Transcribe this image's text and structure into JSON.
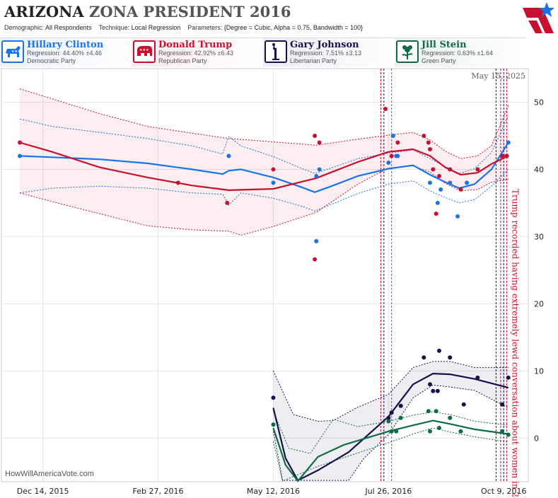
{
  "header": {
    "title_main": "ARIZONA",
    "title_sub": "ZONA PRESIDENT 2016",
    "demographic_label": "Demographic:",
    "demographic": "All Respondents",
    "technique_label": "Technique:",
    "technique": "Local Regression",
    "parameters_label": "Parameters:",
    "parameters": "{Degree = Cubic, Alpha = 0.75, Bandwidth = 100}"
  },
  "candidates": [
    {
      "name": "Hillary Clinton",
      "regression": "Regression: 44.40% ±4.46",
      "party": "Democratic Party",
      "color": "#1a73e8",
      "icon": "donkey-icon"
    },
    {
      "name": "Donald Trump",
      "regression": "Regression: 42.92% ±6.43",
      "party": "Republican Party",
      "color": "#c8102e",
      "icon": "elephant-icon"
    },
    {
      "name": "Gary Johnson",
      "regression": "Regression: 7.51% ±3.13",
      "party": "Libertarian Party",
      "color": "#14124a",
      "icon": "liberty-statue-icon"
    },
    {
      "name": "Jill Stein",
      "regression": "Regression: 0.63% ±1.64",
      "party": "Green Party",
      "color": "#0f6b43",
      "icon": "flower-icon"
    }
  ],
  "chart_data": {
    "type": "scatter",
    "date_label": "May 15, 2025",
    "watermark": "HowWillAmericaVote.com",
    "annotation": "Trump recorded having extremely lewd conversation about women in 2005",
    "xlim": [
      "2015-11-17",
      "2016-10-25"
    ],
    "ylim": [
      -6.5,
      55
    ],
    "y_ticks": [
      0,
      10,
      20,
      30,
      40,
      50
    ],
    "x_ticks": [
      {
        "date": "2015-12-14",
        "label": "Dec 14, 2015"
      },
      {
        "date": "2016-02-27",
        "label": "Feb 27, 2016"
      },
      {
        "date": "2016-05-12",
        "label": "May 12, 2016"
      },
      {
        "date": "2016-07-26",
        "label": "Jul 26, 2016"
      },
      {
        "date": "2016-10-09",
        "label": "Oct 9, 2016"
      }
    ],
    "event_lines": [
      {
        "date": "2016-07-21",
        "color": "#c8102e"
      },
      {
        "date": "2016-07-23",
        "color": "#14124a"
      },
      {
        "date": "2016-07-28",
        "color": "#1a73e8"
      },
      {
        "date": "2016-10-04",
        "color": "#14124a"
      },
      {
        "date": "2016-10-07",
        "color": "#c8102e"
      },
      {
        "date": "2016-10-09",
        "color": "#14124a"
      },
      {
        "date": "2016-10-11",
        "color": "#c8102e"
      }
    ],
    "series": [
      {
        "name": "Hillary Clinton",
        "color": "#1a73e8",
        "band_color": "#1a73e8",
        "band_fill": "none",
        "points": [
          [
            "2015-11-29",
            42
          ],
          [
            "2016-04-13",
            42
          ],
          [
            "2016-05-12",
            38
          ],
          [
            "2016-06-09",
            39
          ],
          [
            "2016-06-11",
            40
          ],
          [
            "2016-06-09",
            29.3
          ],
          [
            "2016-07-26",
            41
          ],
          [
            "2016-07-29",
            45
          ],
          [
            "2016-07-31",
            42
          ],
          [
            "2016-08-01",
            42
          ],
          [
            "2016-08-22",
            38
          ],
          [
            "2016-08-24",
            40
          ],
          [
            "2016-08-27",
            35
          ],
          [
            "2016-08-29",
            37
          ],
          [
            "2016-09-04",
            38
          ],
          [
            "2016-09-09",
            33
          ],
          [
            "2016-09-15",
            38
          ],
          [
            "2016-10-09",
            42
          ],
          [
            "2016-10-12",
            44
          ]
        ],
        "trend": [
          [
            "2015-11-29",
            42
          ],
          [
            "2015-12-20",
            41.8
          ],
          [
            "2016-01-20",
            41.5
          ],
          [
            "2016-02-20",
            40.9
          ],
          [
            "2016-03-20",
            40
          ],
          [
            "2016-04-09",
            39.3
          ],
          [
            "2016-04-13",
            39.8
          ],
          [
            "2016-04-21",
            40
          ],
          [
            "2016-05-12",
            38.8
          ],
          [
            "2016-05-31",
            37.3
          ],
          [
            "2016-06-08",
            36.6
          ],
          [
            "2016-06-20",
            37.6
          ],
          [
            "2016-07-06",
            39
          ],
          [
            "2016-07-26",
            40.1
          ],
          [
            "2016-08-11",
            40.6
          ],
          [
            "2016-08-22",
            39.2
          ],
          [
            "2016-09-01",
            38.1
          ],
          [
            "2016-09-10",
            37.2
          ],
          [
            "2016-09-20",
            37.8
          ],
          [
            "2016-10-01",
            40
          ],
          [
            "2016-10-12",
            44
          ]
        ],
        "upper": [
          [
            "2015-11-29",
            47.5
          ],
          [
            "2015-12-20",
            46.4
          ],
          [
            "2016-01-20",
            45.5
          ],
          [
            "2016-02-20",
            44.6
          ],
          [
            "2016-03-20",
            43.5
          ],
          [
            "2016-04-09",
            42.3
          ],
          [
            "2016-04-13",
            44.9
          ],
          [
            "2016-04-21",
            43.5
          ],
          [
            "2016-05-12",
            41.9
          ],
          [
            "2016-05-31",
            40.1
          ],
          [
            "2016-06-08",
            39.4
          ],
          [
            "2016-06-20",
            40.3
          ],
          [
            "2016-07-06",
            41.6
          ],
          [
            "2016-07-26",
            42.4
          ],
          [
            "2016-08-11",
            42.9
          ],
          [
            "2016-08-22",
            41.6
          ],
          [
            "2016-09-01",
            40.4
          ],
          [
            "2016-09-10",
            39.4
          ],
          [
            "2016-09-20",
            40.1
          ],
          [
            "2016-10-01",
            42.5
          ],
          [
            "2016-10-12",
            48
          ]
        ],
        "lower": [
          [
            "2015-11-29",
            36.5
          ],
          [
            "2015-12-20",
            37.2
          ],
          [
            "2016-01-20",
            37.5
          ],
          [
            "2016-02-20",
            37.2
          ],
          [
            "2016-03-20",
            36.5
          ],
          [
            "2016-04-09",
            36.3
          ],
          [
            "2016-04-13",
            34.7
          ],
          [
            "2016-04-21",
            36.5
          ],
          [
            "2016-05-12",
            35.7
          ],
          [
            "2016-05-31",
            34.5
          ],
          [
            "2016-06-08",
            33.8
          ],
          [
            "2016-06-20",
            34.9
          ],
          [
            "2016-07-06",
            36.4
          ],
          [
            "2016-07-26",
            37.8
          ],
          [
            "2016-08-11",
            38.3
          ],
          [
            "2016-08-22",
            36.8
          ],
          [
            "2016-09-01",
            35.8
          ],
          [
            "2016-09-10",
            35
          ],
          [
            "2016-09-20",
            35.5
          ],
          [
            "2016-10-01",
            37.5
          ],
          [
            "2016-10-12",
            40
          ]
        ]
      },
      {
        "name": "Donald Trump",
        "color": "#c8102e",
        "band_color": "#c8102e",
        "band_fill": "#c8102e",
        "points": [
          [
            "2015-11-29",
            44
          ],
          [
            "2016-03-11",
            38
          ],
          [
            "2016-04-12",
            35
          ],
          [
            "2016-05-12",
            40
          ],
          [
            "2016-06-08",
            45
          ],
          [
            "2016-06-11",
            44
          ],
          [
            "2016-06-08",
            26.6
          ],
          [
            "2016-07-24",
            49
          ],
          [
            "2016-07-28",
            42
          ],
          [
            "2016-08-01",
            44
          ],
          [
            "2016-08-18",
            45
          ],
          [
            "2016-08-21",
            44
          ],
          [
            "2016-08-22",
            43
          ],
          [
            "2016-08-24",
            40
          ],
          [
            "2016-08-28",
            39
          ],
          [
            "2016-08-26",
            33.4
          ],
          [
            "2016-09-04",
            40
          ],
          [
            "2016-09-11",
            37
          ],
          [
            "2016-09-22",
            40
          ],
          [
            "2016-10-08",
            42
          ],
          [
            "2016-10-11",
            42
          ]
        ],
        "trend": [
          [
            "2015-11-29",
            44
          ],
          [
            "2015-12-20",
            42.6
          ],
          [
            "2016-01-20",
            40.3
          ],
          [
            "2016-02-20",
            38.8
          ],
          [
            "2016-03-20",
            37.6
          ],
          [
            "2016-04-13",
            36.9
          ],
          [
            "2016-05-12",
            37.1
          ],
          [
            "2016-06-09",
            38.7
          ],
          [
            "2016-07-06",
            41.1
          ],
          [
            "2016-07-26",
            42.6
          ],
          [
            "2016-08-11",
            43
          ],
          [
            "2016-08-22",
            42
          ],
          [
            "2016-09-01",
            40.3
          ],
          [
            "2016-09-11",
            39.2
          ],
          [
            "2016-09-22",
            39.5
          ],
          [
            "2016-10-01",
            40.8
          ],
          [
            "2016-10-12",
            42
          ]
        ],
        "upper": [
          [
            "2015-11-29",
            52
          ],
          [
            "2015-12-20",
            50.5
          ],
          [
            "2016-01-20",
            48.3
          ],
          [
            "2016-02-20",
            46.4
          ],
          [
            "2016-03-20",
            45.4
          ],
          [
            "2016-04-13",
            44.6
          ],
          [
            "2016-05-12",
            44.1
          ],
          [
            "2016-06-09",
            43.6
          ],
          [
            "2016-07-06",
            44.5
          ],
          [
            "2016-07-26",
            45.1
          ],
          [
            "2016-08-11",
            45.5
          ],
          [
            "2016-08-22",
            44.4
          ],
          [
            "2016-09-01",
            42.7
          ],
          [
            "2016-09-11",
            41.6
          ],
          [
            "2016-09-22",
            42
          ],
          [
            "2016-10-01",
            43.5
          ],
          [
            "2016-10-12",
            49.5
          ]
        ],
        "lower": [
          [
            "2015-11-29",
            36.5
          ],
          [
            "2015-12-20",
            35.2
          ],
          [
            "2016-01-20",
            33.4
          ],
          [
            "2016-02-20",
            31.6
          ],
          [
            "2016-03-20",
            31
          ],
          [
            "2016-04-13",
            30.8
          ],
          [
            "2016-04-21",
            30.2
          ],
          [
            "2016-05-12",
            31.5
          ],
          [
            "2016-06-09",
            33.6
          ],
          [
            "2016-07-06",
            37.8
          ],
          [
            "2016-07-26",
            40.2
          ],
          [
            "2016-08-11",
            40.5
          ],
          [
            "2016-08-22",
            39.6
          ],
          [
            "2016-09-01",
            37.9
          ],
          [
            "2016-09-11",
            36.8
          ],
          [
            "2016-09-22",
            37
          ],
          [
            "2016-10-01",
            38.1
          ],
          [
            "2016-10-12",
            38.5
          ]
        ]
      },
      {
        "name": "Gary Johnson",
        "color": "#14124a",
        "band_color": "#14124a",
        "band_fill": "#14124a",
        "points": [
          [
            "2016-05-12",
            6
          ],
          [
            "2016-07-26",
            3
          ],
          [
            "2016-07-28",
            3.8
          ],
          [
            "2016-08-03",
            4.8
          ],
          [
            "2016-08-18",
            12
          ],
          [
            "2016-08-22",
            8
          ],
          [
            "2016-08-24",
            7
          ],
          [
            "2016-08-27",
            7
          ],
          [
            "2016-08-28",
            13
          ],
          [
            "2016-09-04",
            12
          ],
          [
            "2016-09-13",
            5
          ],
          [
            "2016-09-22",
            9
          ],
          [
            "2016-10-08",
            5
          ],
          [
            "2016-10-12",
            9
          ]
        ],
        "trend": [
          [
            "2016-05-12",
            4.5
          ],
          [
            "2016-05-20",
            -3
          ],
          [
            "2016-05-28",
            -6.3
          ],
          [
            "2016-06-10",
            -4.8
          ],
          [
            "2016-06-30",
            -2.1
          ],
          [
            "2016-07-26",
            3.2
          ],
          [
            "2016-08-11",
            8
          ],
          [
            "2016-08-24",
            9.6
          ],
          [
            "2016-09-04",
            9.5
          ],
          [
            "2016-09-20",
            8.8
          ],
          [
            "2016-10-12",
            7.5
          ]
        ],
        "upper": [
          [
            "2016-05-12",
            10
          ],
          [
            "2016-05-25",
            3.5
          ],
          [
            "2016-06-10",
            2.5
          ],
          [
            "2016-06-20",
            2.6
          ],
          [
            "2016-07-06",
            4.6
          ],
          [
            "2016-07-26",
            6.5
          ],
          [
            "2016-08-11",
            10.5
          ],
          [
            "2016-08-24",
            11.4
          ],
          [
            "2016-09-04",
            11.4
          ],
          [
            "2016-09-20",
            10.5
          ],
          [
            "2016-10-12",
            10.5
          ]
        ],
        "lower": [
          [
            "2016-05-12",
            1
          ],
          [
            "2016-05-18",
            -6.3
          ],
          [
            "2016-06-30",
            -6.3
          ],
          [
            "2016-07-10",
            -3
          ],
          [
            "2016-07-26",
            0.5
          ],
          [
            "2016-08-11",
            6
          ],
          [
            "2016-08-24",
            7.9
          ],
          [
            "2016-09-04",
            7.6
          ],
          [
            "2016-09-20",
            7.1
          ],
          [
            "2016-10-12",
            4.5
          ]
        ]
      },
      {
        "name": "Jill Stein",
        "color": "#0f6b43",
        "band_color": "#0f6b43",
        "band_fill": "none",
        "points": [
          [
            "2016-05-12",
            2
          ],
          [
            "2016-07-26",
            2.5
          ],
          [
            "2016-07-28",
            1
          ],
          [
            "2016-07-31",
            1
          ],
          [
            "2016-08-03",
            3
          ],
          [
            "2016-08-21",
            4
          ],
          [
            "2016-08-22",
            1
          ],
          [
            "2016-08-26",
            4
          ],
          [
            "2016-08-28",
            1.5
          ],
          [
            "2016-09-04",
            3
          ],
          [
            "2016-09-11",
            1
          ],
          [
            "2016-10-08",
            1
          ],
          [
            "2016-10-12",
            0.5
          ]
        ],
        "trend": [
          [
            "2016-05-12",
            1.5
          ],
          [
            "2016-05-20",
            -4
          ],
          [
            "2016-05-28",
            -6.4
          ],
          [
            "2016-06-10",
            -2.8
          ],
          [
            "2016-06-27",
            -1
          ],
          [
            "2016-07-26",
            1
          ],
          [
            "2016-08-11",
            1.9
          ],
          [
            "2016-08-24",
            2.6
          ],
          [
            "2016-09-04",
            2.1
          ],
          [
            "2016-09-20",
            1.3
          ],
          [
            "2016-10-12",
            0.6
          ]
        ],
        "upper": [
          [
            "2016-05-12",
            4
          ],
          [
            "2016-05-22",
            -1.5
          ],
          [
            "2016-06-05",
            -2.3
          ],
          [
            "2016-06-20",
            2.8
          ],
          [
            "2016-07-06",
            1.7
          ],
          [
            "2016-07-26",
            2.5
          ],
          [
            "2016-08-11",
            3.4
          ],
          [
            "2016-08-24",
            3.9
          ],
          [
            "2016-09-04",
            3.5
          ],
          [
            "2016-09-20",
            2.5
          ],
          [
            "2016-10-12",
            1.9
          ]
        ],
        "lower": [
          [
            "2016-05-12",
            -0.5
          ],
          [
            "2016-05-18",
            -6.4
          ],
          [
            "2016-06-10",
            -4.2
          ],
          [
            "2016-06-27",
            -2.9
          ],
          [
            "2016-07-26",
            -0.7
          ],
          [
            "2016-08-11",
            0.6
          ],
          [
            "2016-08-24",
            1.5
          ],
          [
            "2016-09-04",
            0.9
          ],
          [
            "2016-09-20",
            0.2
          ],
          [
            "2016-10-12",
            -0.6
          ]
        ]
      }
    ]
  }
}
